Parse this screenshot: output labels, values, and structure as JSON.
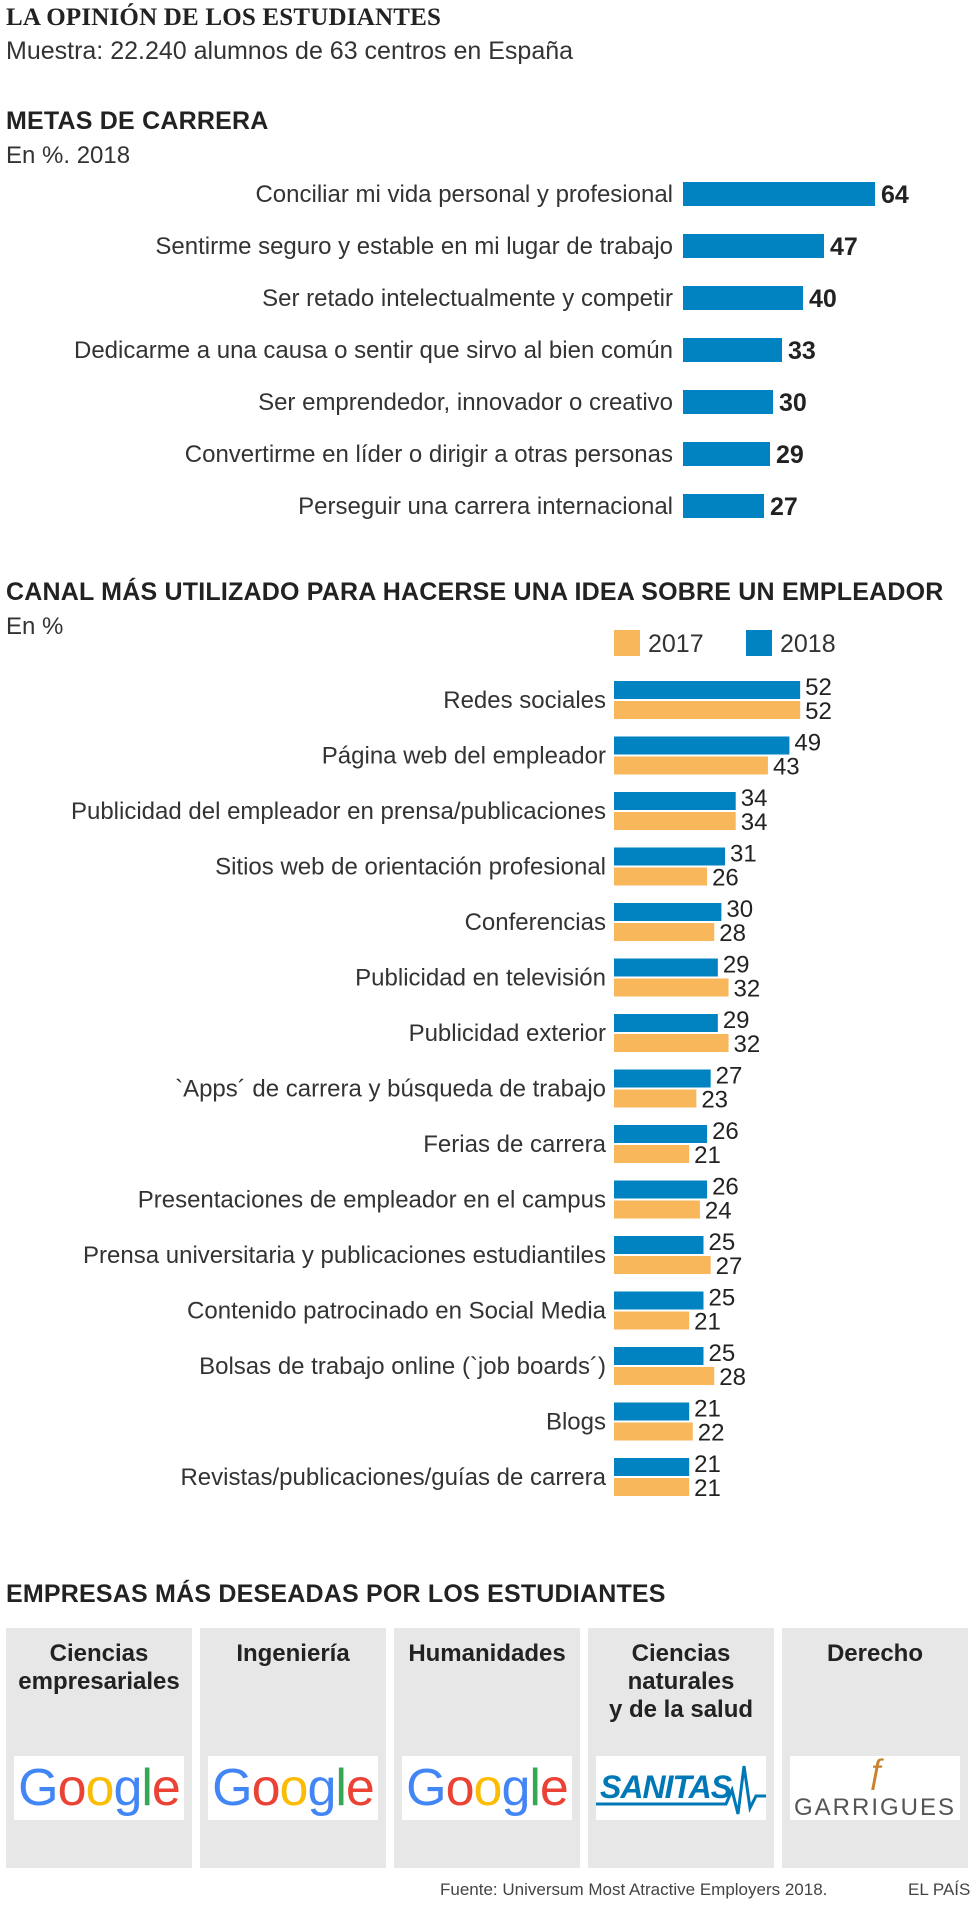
{
  "header": {
    "title": "LA OPINIÓN DE LOS ESTUDIANTES",
    "subtitle": "Muestra: 22.240 alumnos de 63 centros en España"
  },
  "colors": {
    "blue": "#0083c0",
    "orange": "#f9b75c"
  },
  "chart_data": [
    {
      "type": "bar",
      "orientation": "horizontal",
      "title": "METAS DE CARRERA",
      "subtitle": "En %. 2018",
      "categories": [
        "Conciliar mi vida personal y profesional",
        "Sentirme seguro y estable en mi lugar de trabajo",
        "Ser retado intelectualmente y competir",
        "Dedicarme a una causa o sentir que sirvo al bien común",
        "Ser emprendedor, innovador o creativo",
        "Convertirme en líder o dirigir a otras personas",
        "Perseguir una carrera internacional"
      ],
      "values": [
        64,
        47,
        40,
        33,
        30,
        29,
        27
      ]
    },
    {
      "type": "bar",
      "orientation": "horizontal",
      "title": "CANAL MÁS UTILIZADO PARA HACERSE UNA IDEA SOBRE UN EMPLEADOR",
      "subtitle": "En %",
      "legend": [
        "2017",
        "2018"
      ],
      "categories": [
        "Redes sociales",
        "Página web del empleador",
        "Publicidad del empleador en prensa/publicaciones",
        "Sitios web de orientación profesional",
        "Conferencias",
        "Publicidad en televisión",
        "Publicidad exterior",
        "`Apps´ de carrera y búsqueda de trabajo",
        "Ferias de carrera",
        "Presentaciones de empleador en el campus",
        "Prensa universitaria y publicaciones estudiantiles",
        "Contenido patrocinado en Social Media",
        "Bolsas de trabajo online (`job boards´)",
        "Blogs",
        "Revistas/publicaciones/guías de carrera"
      ],
      "series": [
        {
          "name": "2018",
          "values": [
            52,
            49,
            34,
            31,
            30,
            29,
            29,
            27,
            26,
            26,
            25,
            25,
            25,
            21,
            21
          ]
        },
        {
          "name": "2017",
          "values": [
            52,
            43,
            34,
            26,
            28,
            32,
            32,
            23,
            21,
            24,
            27,
            21,
            28,
            22,
            21
          ]
        }
      ]
    }
  ],
  "companies": {
    "title": "EMPRESAS MÁS DESEADAS POR LOS ESTUDIANTES",
    "panels": [
      {
        "category": "Ciencias\nempresariales",
        "company": "Google"
      },
      {
        "category": "Ingeniería",
        "company": "Google"
      },
      {
        "category": "Humanidades",
        "company": "Google"
      },
      {
        "category": "Ciencias\nnaturales\ny de la salud",
        "company": "SANITAS"
      },
      {
        "category": "Derecho",
        "company": "GARRIGUES"
      }
    ]
  },
  "footer": {
    "source": "Fuente: Universum Most Atractive Employers 2018.",
    "brand": "EL PAÍS"
  }
}
